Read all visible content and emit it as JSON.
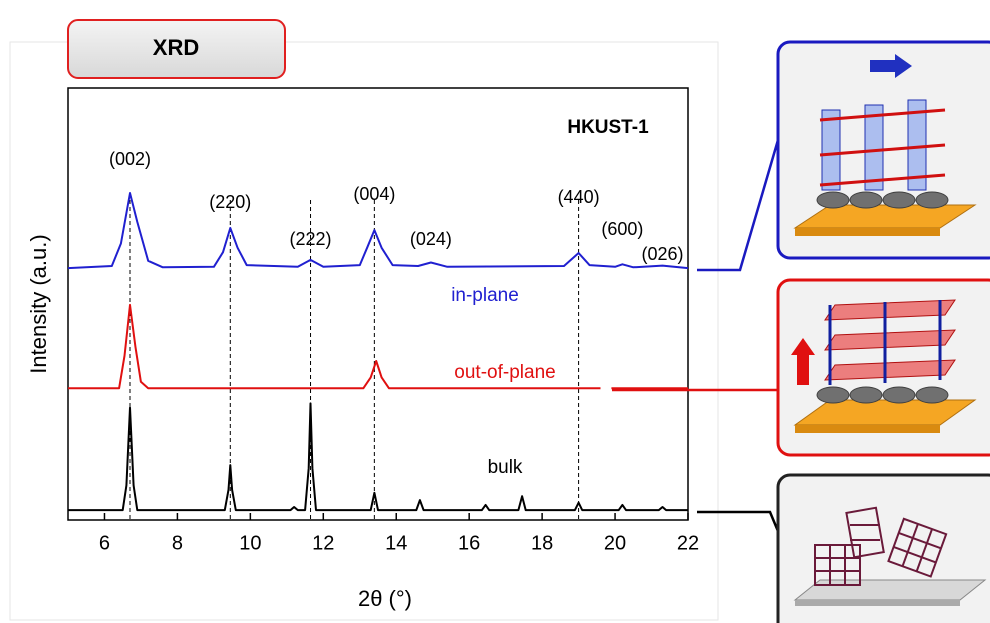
{
  "chart_data": {
    "type": "line",
    "header": "XRD",
    "title": "HKUST-1",
    "xlabel": "2θ (°)",
    "ylabel": "Intensity (a.u.)",
    "xlim": [
      5,
      22
    ],
    "xticks": [
      6,
      8,
      10,
      12,
      14,
      16,
      18,
      20,
      22
    ],
    "ylim": [
      0,
      100
    ],
    "series": [
      {
        "name": "in-plane",
        "color": "#2020d0",
        "x": [
          5.0,
          6.2,
          6.45,
          6.7,
          6.9,
          7.2,
          7.6,
          9.0,
          9.25,
          9.45,
          9.65,
          9.9,
          11.3,
          11.65,
          12.0,
          13.0,
          13.2,
          13.4,
          13.6,
          13.9,
          14.6,
          14.95,
          15.4,
          18.6,
          19.0,
          19.3,
          20.0,
          20.2,
          20.5,
          21.3,
          22.0
        ],
        "values": [
          58.3,
          58.8,
          64,
          75.7,
          69,
          60,
          58.5,
          58.6,
          62,
          67.6,
          63,
          59,
          58.6,
          60.2,
          58.6,
          59,
          63,
          67.1,
          63,
          59,
          58.8,
          59.6,
          58.6,
          58.8,
          61.8,
          59,
          58.6,
          59.2,
          58.5,
          58.9,
          58.3
        ]
      },
      {
        "name": "out-of-plane",
        "color": "#e01010",
        "x": [
          5.0,
          6.4,
          6.55,
          6.7,
          6.85,
          7.0,
          7.2,
          13.1,
          13.3,
          13.45,
          13.6,
          13.8,
          19.6,
          19.75,
          19.9,
          22.0
        ],
        "values": [
          30.5,
          30.5,
          38,
          49.8,
          40,
          32,
          30.5,
          30.5,
          33,
          36.8,
          33,
          30.5,
          30.5,
          null,
          30.5,
          30.5
        ]
      },
      {
        "name": "bulk",
        "color": "#000000",
        "x": [
          5.0,
          6.5,
          6.6,
          6.7,
          6.8,
          6.9,
          9.3,
          9.4,
          9.45,
          9.5,
          9.6,
          11.1,
          11.2,
          11.3,
          11.5,
          11.6,
          11.65,
          11.7,
          11.8,
          13.3,
          13.4,
          13.5,
          14.55,
          14.65,
          14.75,
          16.35,
          16.45,
          16.55,
          17.35,
          17.45,
          17.55,
          18.9,
          19.0,
          19.1,
          20.1,
          20.2,
          20.3,
          21.2,
          21.3,
          21.4,
          22.0
        ],
        "values": [
          2.3,
          2.3,
          8,
          26,
          8,
          2.3,
          2.3,
          7,
          12.7,
          7,
          2.3,
          2.3,
          3,
          2.3,
          2.3,
          12,
          27,
          12,
          2.3,
          2.3,
          6.3,
          2.3,
          2.3,
          4.6,
          2.3,
          2.3,
          3.5,
          2.3,
          2.3,
          5.5,
          2.3,
          2.3,
          4,
          2.3,
          2.3,
          3.5,
          2.3,
          2.3,
          3,
          2.3,
          2.3
        ]
      }
    ],
    "peak_labels": [
      {
        "text": "(002)",
        "x": 6.7
      },
      {
        "text": "(220)",
        "x": 9.45
      },
      {
        "text": "(222)",
        "x": 11.65
      },
      {
        "text": "(004)",
        "x": 13.4
      },
      {
        "text": "(024)",
        "x": 14.95
      },
      {
        "text": "(440)",
        "x": 19.0
      },
      {
        "text": "(600)",
        "x": 20.2
      },
      {
        "text": "(026)",
        "x": 21.3
      }
    ],
    "reference_lines": [
      6.7,
      9.45,
      11.65,
      13.4,
      19.0
    ]
  }
}
